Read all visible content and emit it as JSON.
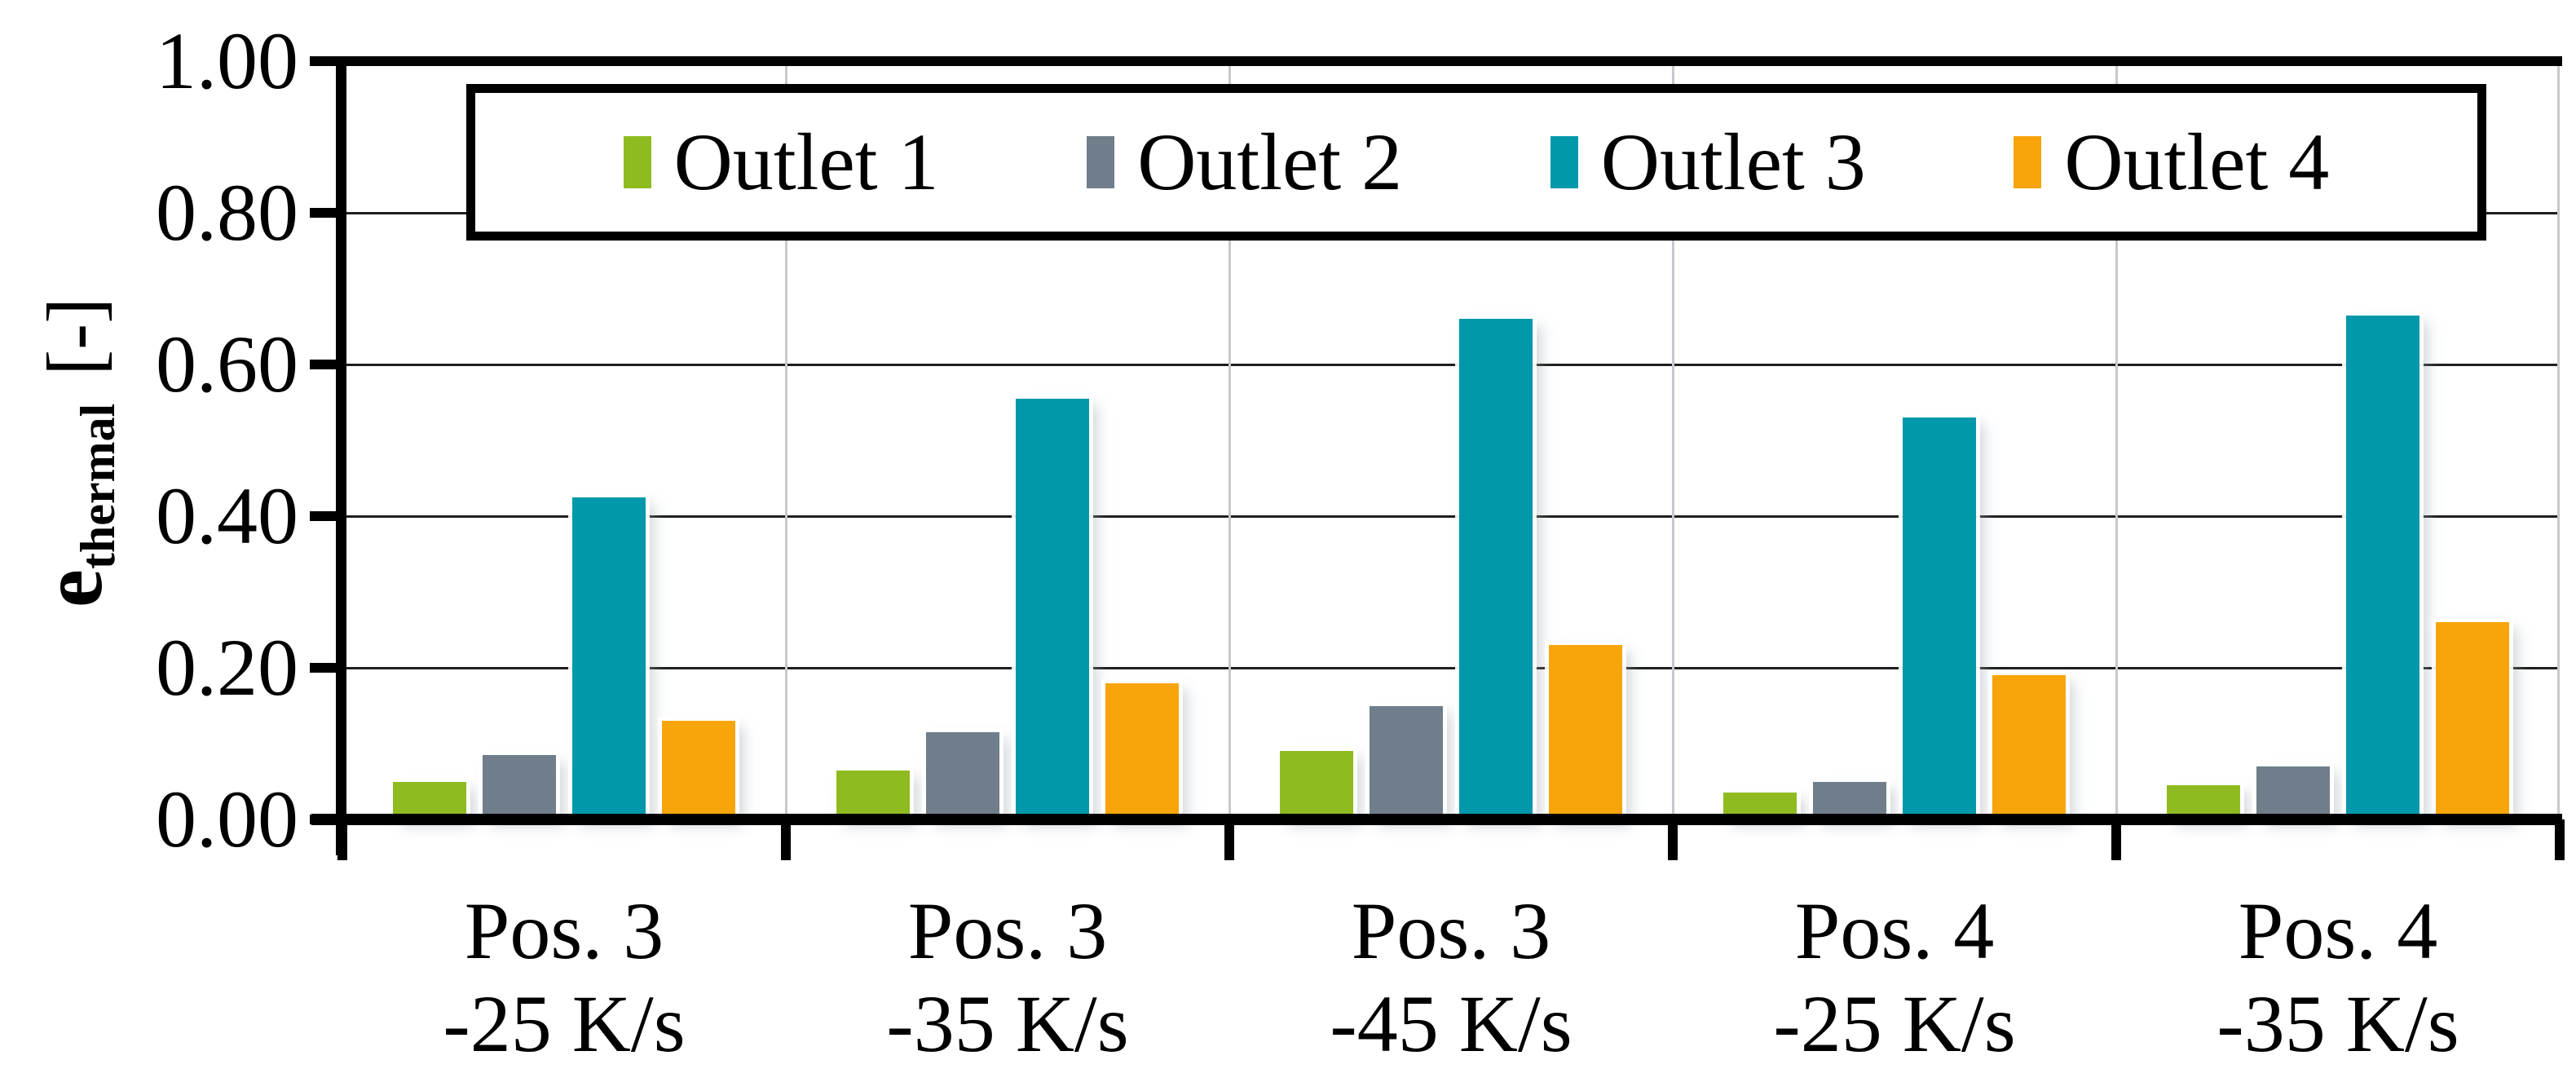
{
  "background": "#ffffff",
  "ylabel": {
    "main": "e",
    "sub": "thermal",
    "unit": "[-]"
  },
  "chart_data": {
    "type": "bar",
    "title": "",
    "xlabel": "",
    "ylabel": "e_thermal [-]",
    "ylim": [
      0,
      1.0
    ],
    "ytick_step": 0.2,
    "yticks": [
      "1.00",
      "0.80",
      "0.60",
      "0.40",
      "0.20",
      "0.00"
    ],
    "grid": {
      "horizontal": true,
      "vertical": true,
      "horizontal_color": "#1f1f1f",
      "vertical_color": "#c6c9cb",
      "axis_color": "#000000"
    },
    "legend_position": "top",
    "categories": [
      {
        "line1": "Pos. 3",
        "line2": "-25 K/s"
      },
      {
        "line1": "Pos. 3",
        "line2": "-35 K/s"
      },
      {
        "line1": "Pos. 3",
        "line2": "-45 K/s"
      },
      {
        "line1": "Pos. 4",
        "line2": "-25 K/s"
      },
      {
        "line1": "Pos. 4",
        "line2": "-35 K/s"
      }
    ],
    "series": [
      {
        "name": "Outlet 1",
        "color": "#8FBB21",
        "values": [
          0.05,
          0.065,
          0.09,
          0.035,
          0.045
        ]
      },
      {
        "name": "Outlet 2",
        "color": "#6F7E8A",
        "values": [
          0.085,
          0.115,
          0.15,
          0.05,
          0.07
        ]
      },
      {
        "name": "Outlet 3",
        "color": "#0298AB",
        "values": [
          0.425,
          0.555,
          0.66,
          0.53,
          0.665
        ]
      },
      {
        "name": "Outlet 4",
        "color": "#F7A50B",
        "values": [
          0.13,
          0.18,
          0.23,
          0.19,
          0.26
        ]
      }
    ]
  }
}
